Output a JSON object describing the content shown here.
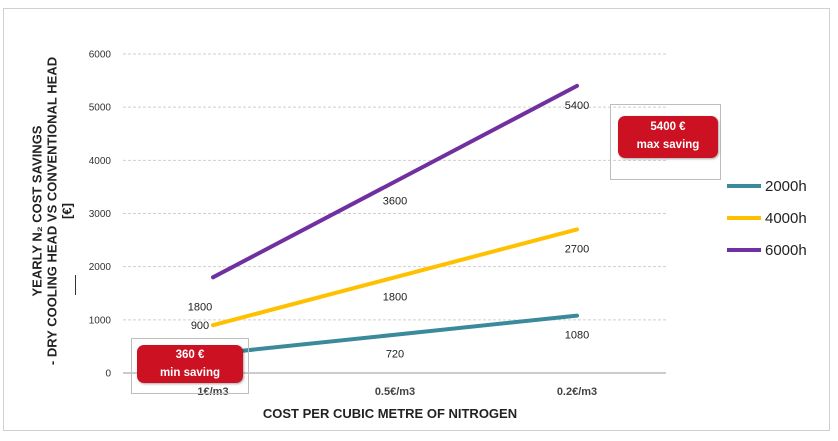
{
  "chart_data": {
    "type": "line",
    "categories": [
      "1€/m3",
      "0.5€/m3",
      "0.2€/m3"
    ],
    "series": [
      {
        "name": "2000h",
        "values": [
          360,
          720,
          1080
        ],
        "color": "#3a8a9c",
        "data_labels": [
          "",
          "720",
          "1080"
        ]
      },
      {
        "name": "4000h",
        "values": [
          900,
          1800,
          2700
        ],
        "color": "#ffc000",
        "data_labels": [
          "900",
          "1800",
          "2700"
        ]
      },
      {
        "name": "6000h",
        "values": [
          1800,
          3600,
          5400
        ],
        "color": "#7030a0",
        "data_labels": [
          "1800",
          "3600",
          "5400"
        ]
      }
    ],
    "ylim": [
      0,
      6000
    ],
    "yticks": [
      "0",
      "1000",
      "2000",
      "3000",
      "4000",
      "5000",
      "6000"
    ],
    "ylabel_lines": [
      "YEARLY  N₂ COST SAVINGS",
      "- DRY COOLING HEAD VS CONVENTIONAL  HEAD",
      "[€]"
    ],
    "xlabel": "COST PER CUBIC METRE OF NITROGEN",
    "grid": "horizontal",
    "legend_position": "right"
  },
  "callouts": {
    "max": {
      "line1": "5400 €",
      "line2": "max saving"
    },
    "min": {
      "line1": "360 €",
      "line2": "min saving"
    }
  },
  "colors": {
    "callout": "#cc1122",
    "grid": "#cfcfcf",
    "axis": "#999999"
  }
}
